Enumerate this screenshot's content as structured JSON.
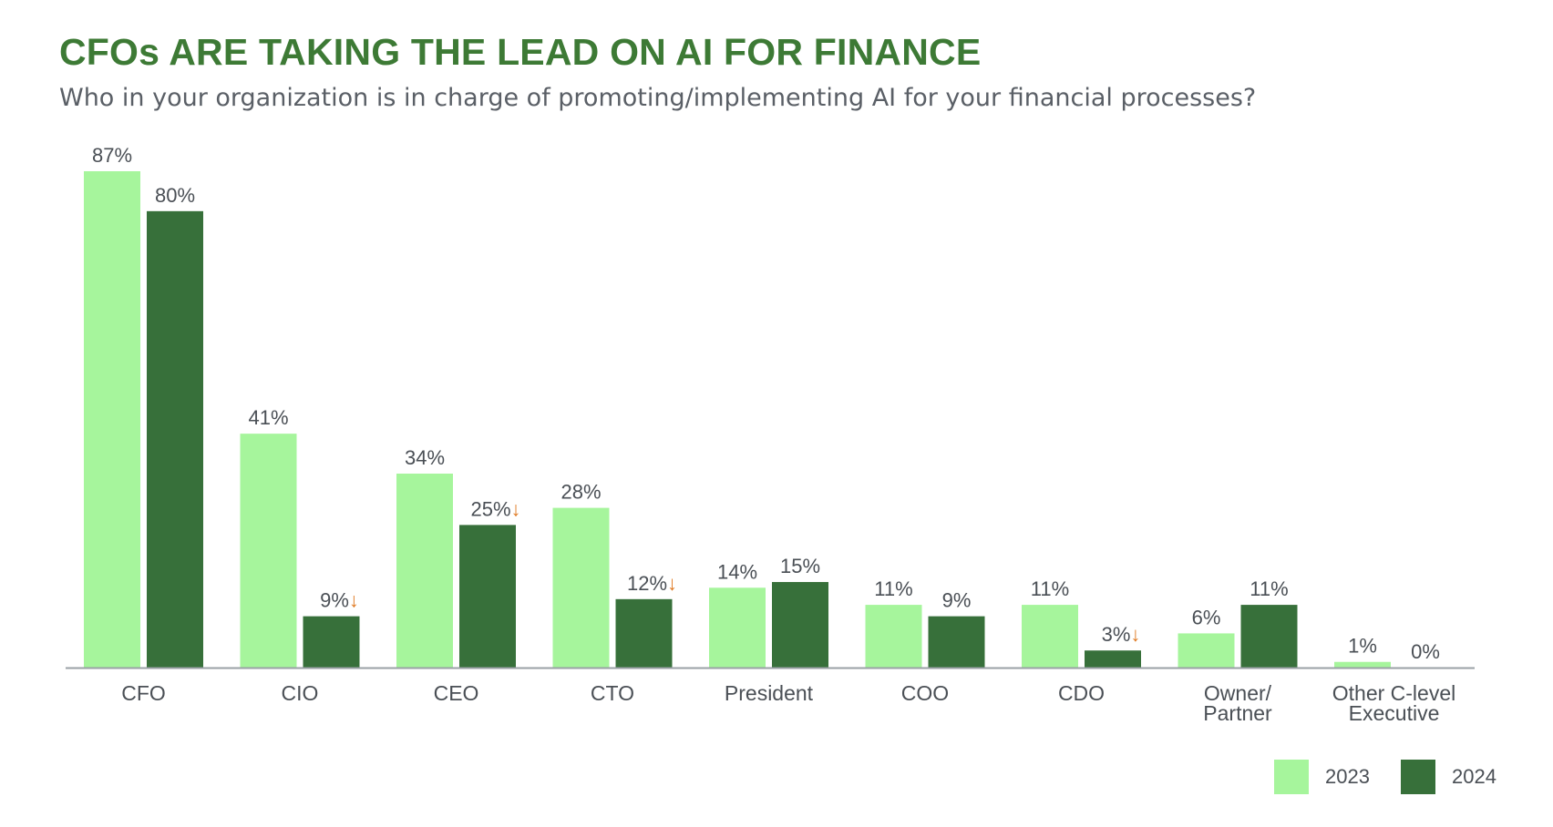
{
  "header": {
    "title": "CFOs ARE TAKING THE LEAD ON AI FOR FINANCE",
    "subtitle": "Who in your organization is in charge of promoting/implementing AI for your financial processes?"
  },
  "colors": {
    "title": "#3d7a35",
    "series_2023": "#a6f59c",
    "series_2024": "#37703a",
    "decline_arrow": "#e07b24",
    "text": "#4a4f55",
    "axis": "#9aa0a6"
  },
  "legend": {
    "items": [
      {
        "label": "2023",
        "series": "2023"
      },
      {
        "label": "2024",
        "series": "2024"
      }
    ]
  },
  "chart_data": {
    "type": "bar",
    "categories": [
      [
        "CFO"
      ],
      [
        "CIO"
      ],
      [
        "CEO"
      ],
      [
        "CTO"
      ],
      [
        "President"
      ],
      [
        "COO"
      ],
      [
        "CDO"
      ],
      [
        "Owner/",
        "Partner"
      ],
      [
        "Other C-level",
        "Executive"
      ]
    ],
    "series": [
      {
        "name": "2023",
        "values": [
          87,
          41,
          34,
          28,
          14,
          11,
          11,
          6,
          1
        ]
      },
      {
        "name": "2024",
        "values": [
          80,
          9,
          25,
          12,
          15,
          9,
          3,
          11,
          0
        ]
      }
    ],
    "value_labels": {
      "2023": [
        "87%",
        "41%",
        "34%",
        "28%",
        "14%",
        "11%",
        "11%",
        "6%",
        "1%"
      ],
      "2024": [
        "80%",
        "9%",
        "25%",
        "12%",
        "15%",
        "9%",
        "3%",
        "11%",
        "0%"
      ]
    },
    "decline_marker": "↓",
    "decline_flags_2024": [
      false,
      true,
      true,
      true,
      false,
      false,
      true,
      false,
      false
    ],
    "ylim": [
      0,
      87
    ],
    "grid": false,
    "legend_position": "bottom-right"
  }
}
